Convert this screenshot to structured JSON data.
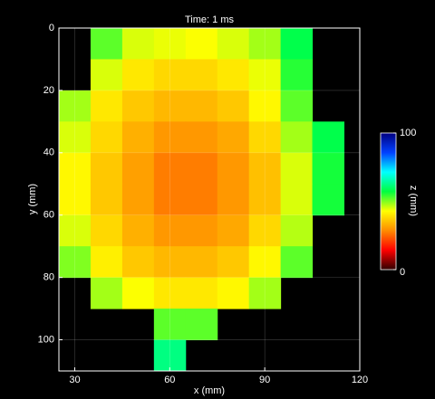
{
  "chart_data": {
    "type": "heatmap",
    "title": "Time: 1 ms",
    "xlabel": "x (mm)",
    "ylabel": "y (mm)",
    "x": [
      30,
      40,
      50,
      60,
      70,
      80,
      90,
      100,
      110
    ],
    "y": [
      5,
      15,
      25,
      35,
      45,
      55,
      65,
      75,
      85,
      95,
      105
    ],
    "z": [
      [
        null,
        52,
        45,
        44,
        43,
        45,
        48,
        58,
        null
      ],
      [
        null,
        45,
        40,
        38,
        38,
        40,
        44,
        55,
        null
      ],
      [
        48,
        40,
        36,
        34,
        34,
        36,
        42,
        52,
        null
      ],
      [
        45,
        38,
        33,
        30,
        30,
        32,
        38,
        48,
        58
      ],
      [
        42,
        36,
        31,
        27,
        27,
        30,
        35,
        45,
        56
      ],
      [
        42,
        36,
        31,
        27,
        27,
        30,
        35,
        45,
        56
      ],
      [
        45,
        38,
        33,
        30,
        30,
        32,
        38,
        47,
        null
      ],
      [
        50,
        41,
        36,
        34,
        34,
        36,
        42,
        52,
        null
      ],
      [
        null,
        48,
        43,
        40,
        40,
        42,
        48,
        null,
        null
      ],
      [
        null,
        null,
        null,
        52,
        52,
        null,
        null,
        null,
        null
      ],
      [
        null,
        null,
        null,
        62,
        null,
        null,
        null,
        null,
        null
      ]
    ],
    "xlim": [
      25,
      120
    ],
    "xticks": [
      30,
      60,
      90,
      120
    ],
    "ylim": [
      0,
      110
    ],
    "yticks": [
      0,
      20,
      40,
      60,
      80,
      100
    ],
    "y_reversed": true,
    "grid": true,
    "zlim": [
      0,
      100
    ],
    "zticks": [
      0,
      100
    ],
    "zlabel": "z (mm)",
    "colormap": [
      "#300000",
      "#ff0000",
      "#ff8c00",
      "#ffff00",
      "#00ff40",
      "#00ffff",
      "#0040ff",
      "#000080"
    ]
  }
}
